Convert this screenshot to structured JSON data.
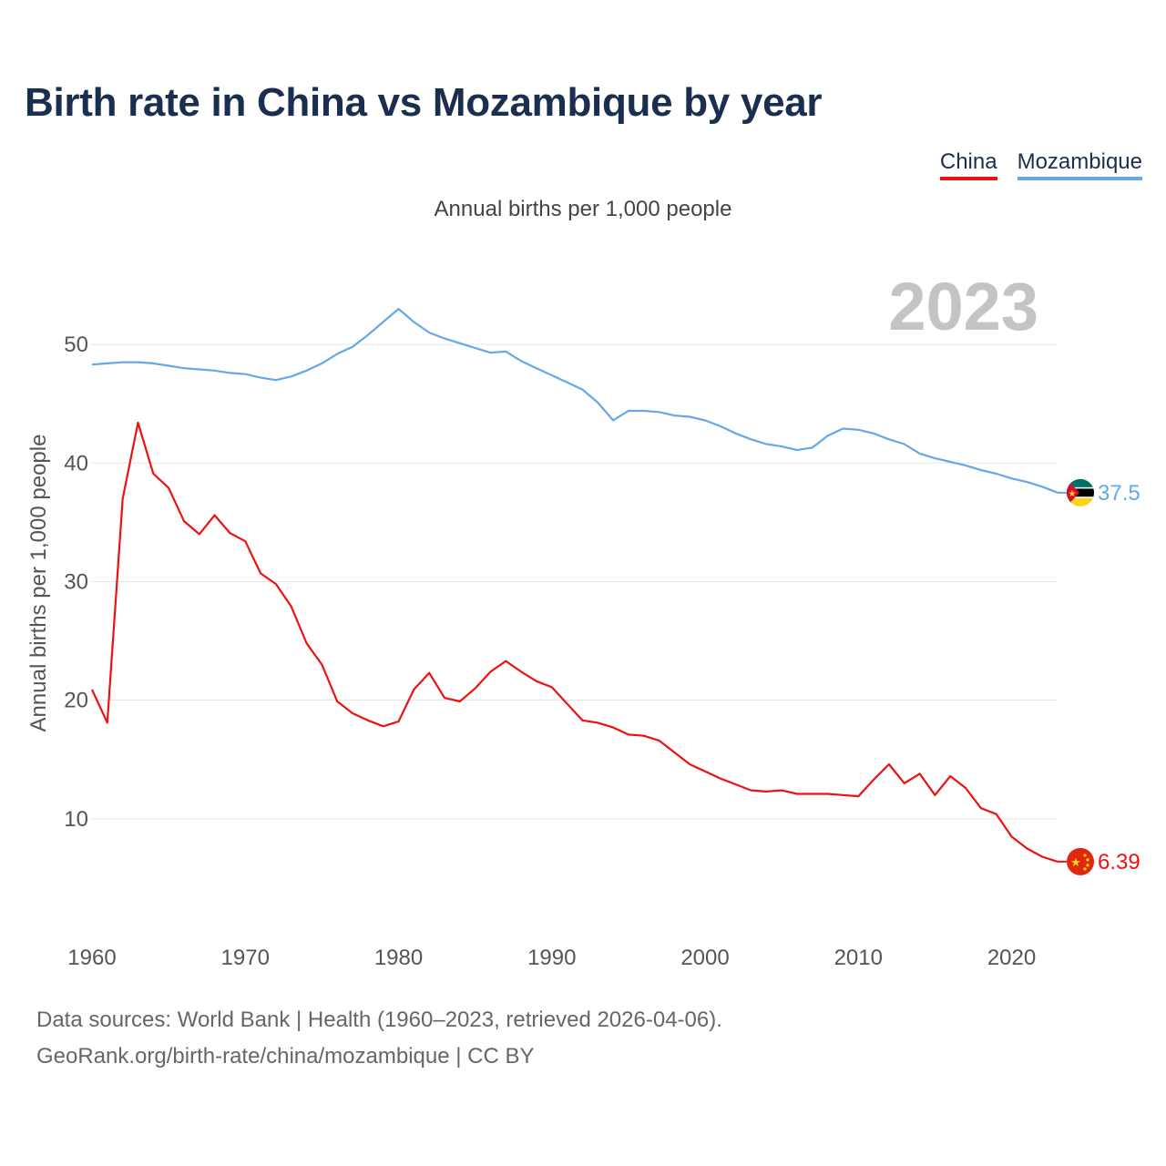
{
  "title": "Birth rate in China vs Mozambique by year",
  "subtitle": "Annual births per 1,000 people",
  "legend": {
    "china": "China",
    "mozambique": "Mozambique"
  },
  "colors": {
    "china": "#ee1111",
    "mozambique": "#64a8e8",
    "title": "#1a2e4f"
  },
  "footer": {
    "line1": "Data sources: World Bank | Health (1960–2023, retrieved 2026-04-06).",
    "line2": "GeoRank.org/birth-rate/china/mozambique | CC BY"
  },
  "chart_data": {
    "type": "line",
    "title": "Birth rate in China vs Mozambique by year",
    "ylabel": "Annual births per 1,000 people",
    "xlabel": "",
    "year_label": "2023",
    "xlim": [
      1960,
      2023
    ],
    "ylim": [
      3,
      56
    ],
    "yticks": [
      "10",
      "20",
      "30",
      "40",
      "50"
    ],
    "xticks": [
      "1960",
      "1970",
      "1980",
      "1990",
      "2000",
      "2010",
      "2020"
    ],
    "x": [
      1960,
      1961,
      1962,
      1963,
      1964,
      1965,
      1966,
      1967,
      1968,
      1969,
      1970,
      1971,
      1972,
      1973,
      1974,
      1975,
      1976,
      1977,
      1978,
      1979,
      1980,
      1981,
      1982,
      1983,
      1984,
      1985,
      1986,
      1987,
      1988,
      1989,
      1990,
      1991,
      1992,
      1993,
      1994,
      1995,
      1996,
      1997,
      1998,
      1999,
      2000,
      2001,
      2002,
      2003,
      2004,
      2005,
      2006,
      2007,
      2008,
      2009,
      2010,
      2011,
      2012,
      2013,
      2014,
      2015,
      2016,
      2017,
      2018,
      2019,
      2020,
      2021,
      2022,
      2023
    ],
    "series": [
      {
        "name": "China",
        "end_label": "6.39",
        "values": [
          20.9,
          18.1,
          37.0,
          43.4,
          39.1,
          37.9,
          35.1,
          34.0,
          35.6,
          34.1,
          33.4,
          30.7,
          29.8,
          27.9,
          24.8,
          23.0,
          19.9,
          18.9,
          18.3,
          17.8,
          18.2,
          20.9,
          22.3,
          20.2,
          19.9,
          21.0,
          22.4,
          23.3,
          22.4,
          21.6,
          21.1,
          19.7,
          18.3,
          18.1,
          17.7,
          17.1,
          17.0,
          16.6,
          15.6,
          14.6,
          14.0,
          13.4,
          12.9,
          12.4,
          12.3,
          12.4,
          12.1,
          12.1,
          12.1,
          12.0,
          11.9,
          13.3,
          14.6,
          13.0,
          13.8,
          12.0,
          13.6,
          12.6,
          10.9,
          10.4,
          8.5,
          7.5,
          6.8,
          6.39
        ]
      },
      {
        "name": "Mozambique",
        "end_label": "37.5",
        "values": [
          48.3,
          48.4,
          48.5,
          48.5,
          48.4,
          48.2,
          48.0,
          47.9,
          47.8,
          47.6,
          47.5,
          47.2,
          47.0,
          47.3,
          47.8,
          48.4,
          49.2,
          49.8,
          50.8,
          51.9,
          53.0,
          51.9,
          51.0,
          50.5,
          50.1,
          49.7,
          49.3,
          49.4,
          48.6,
          48.0,
          47.4,
          46.8,
          46.2,
          45.1,
          43.6,
          44.4,
          44.4,
          44.3,
          44.0,
          43.9,
          43.6,
          43.1,
          42.5,
          42.0,
          41.6,
          41.4,
          41.1,
          41.3,
          42.3,
          42.9,
          42.8,
          42.5,
          42.0,
          41.6,
          40.8,
          40.4,
          40.1,
          39.8,
          39.4,
          39.1,
          38.7,
          38.4,
          38.0,
          37.5
        ]
      }
    ]
  }
}
